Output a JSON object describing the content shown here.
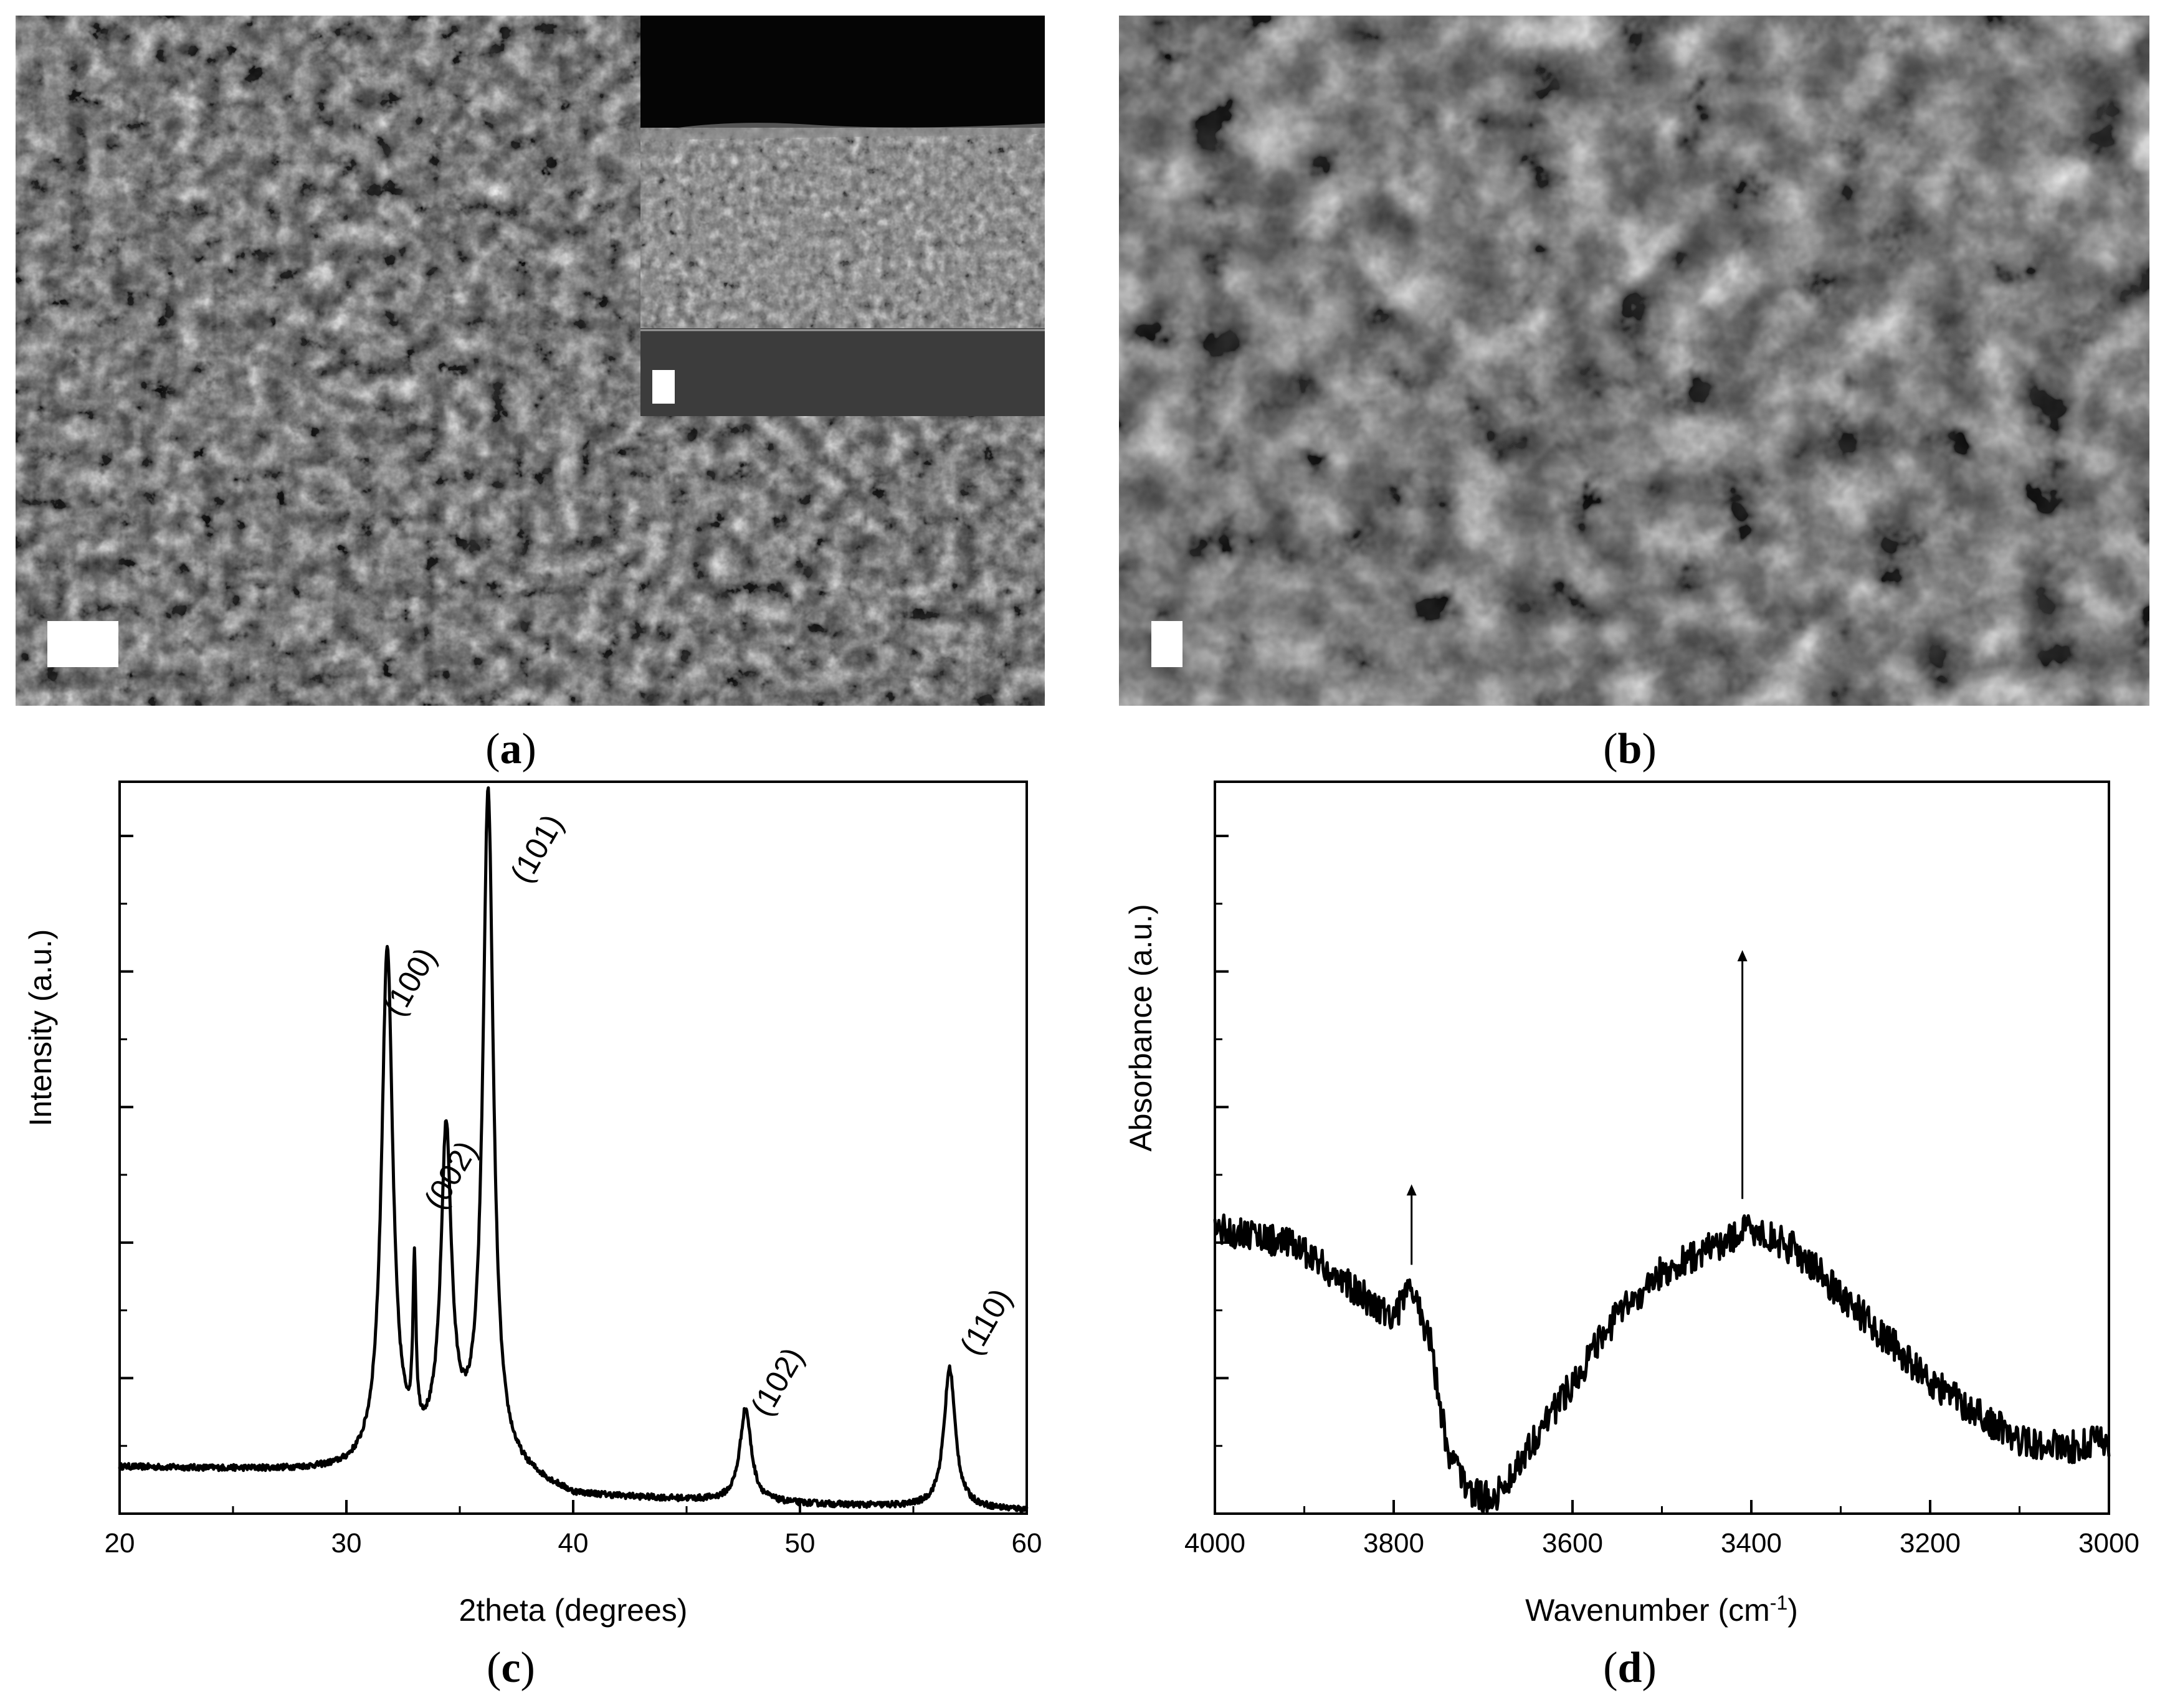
{
  "panels": {
    "a": {
      "label_open": "(",
      "letter": "a",
      "label_close": ")"
    },
    "b": {
      "label_open": "(",
      "letter": "b",
      "label_close": ")"
    },
    "c": {
      "label_open": "(",
      "letter": "c",
      "label_close": ")"
    },
    "d": {
      "label_open": "(",
      "letter": "d",
      "label_close": ")"
    }
  },
  "colors": {
    "line": "#000000",
    "sem_dark": "#2a2a2a",
    "sem_light": "#bdbdbd",
    "scale_bar": "#ffffff"
  },
  "chart_data": [
    {
      "panel": "c",
      "type": "line",
      "xlabel": "2theta (degrees)",
      "ylabel": "Intensity (a.u.)",
      "xlim": [
        20,
        60
      ],
      "ylim": [
        0,
        100
      ],
      "xticks": [
        20,
        30,
        40,
        50,
        60
      ],
      "y_ticklabels_shown": false,
      "grid": false,
      "baseline": [
        [
          20,
          7.0
        ],
        [
          30,
          6.3
        ],
        [
          35,
          9
        ],
        [
          40,
          2.6
        ],
        [
          50,
          1.4
        ],
        [
          60,
          0.5
        ]
      ],
      "peaks": [
        {
          "center": 31.8,
          "height": 77,
          "width": 0.3
        },
        {
          "center": 33.0,
          "height": 25,
          "width": 0.08
        },
        {
          "center": 34.4,
          "height": 47,
          "width": 0.28
        },
        {
          "center": 36.25,
          "height": 100,
          "width": 0.28
        },
        {
          "center": 47.6,
          "height": 14,
          "width": 0.3
        },
        {
          "center": 56.6,
          "height": 21,
          "width": 0.3
        }
      ],
      "annotations": [
        {
          "text": "(100)",
          "x": 33.2,
          "y": 79
        },
        {
          "text": "(002)",
          "x": 35.0,
          "y": 50
        },
        {
          "text": "(101)",
          "x": 38.8,
          "y": 99
        },
        {
          "text": "(102)",
          "x": 49.4,
          "y": 19
        },
        {
          "text": "(110)",
          "x": 58.6,
          "y": 28
        }
      ]
    },
    {
      "panel": "d",
      "type": "line",
      "xlabel": "Wavenumber (cm",
      "xlabel_superscript": "-1",
      "xlabel_end": ")",
      "ylabel": "Absorbance (a.u.)",
      "xlim": [
        4000,
        3000
      ],
      "ylim": [
        0,
        100
      ],
      "xticks": [
        4000,
        3800,
        3600,
        3400,
        3200,
        3000
      ],
      "y_ticklabels_shown": false,
      "grid": false,
      "points": [
        [
          4000,
          39
        ],
        [
          3950,
          38
        ],
        [
          3900,
          36
        ],
        [
          3850,
          31
        ],
        [
          3800,
          27
        ],
        [
          3780,
          31
        ],
        [
          3760,
          24
        ],
        [
          3740,
          9
        ],
        [
          3720,
          4
        ],
        [
          3700,
          2
        ],
        [
          3680,
          3
        ],
        [
          3650,
          9
        ],
        [
          3600,
          18
        ],
        [
          3550,
          27
        ],
        [
          3500,
          33
        ],
        [
          3450,
          36
        ],
        [
          3400,
          39
        ],
        [
          3350,
          36
        ],
        [
          3300,
          30
        ],
        [
          3250,
          24
        ],
        [
          3200,
          18
        ],
        [
          3150,
          14
        ],
        [
          3100,
          10
        ],
        [
          3050,
          9
        ],
        [
          3000,
          10
        ]
      ],
      "arrows": [
        {
          "x": 3780,
          "from": 34,
          "to": 45
        },
        {
          "x": 3410,
          "from": 43,
          "to": 77
        }
      ]
    }
  ]
}
